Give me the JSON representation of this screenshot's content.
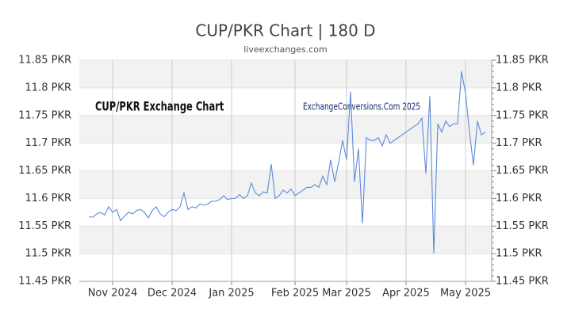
{
  "chart_data": {
    "type": "line",
    "title": "CUP/PKR Chart | 180 D",
    "subtitle": "liveexchanges.com",
    "annotations": [
      "CUP/PKR Exchange Chart",
      "ExchangeConversions.Com 2025"
    ],
    "categories": [
      null,
      null,
      null,
      null,
      null,
      null,
      "Nov 2024",
      null,
      null,
      null,
      null,
      null,
      null,
      null,
      null,
      null,
      null,
      null,
      null,
      null,
      null,
      "Dec 2024",
      null,
      null,
      null,
      null,
      null,
      null,
      null,
      null,
      null,
      null,
      null,
      null,
      null,
      null,
      "Jan 2025",
      null,
      null,
      null,
      null,
      null,
      null,
      null,
      null,
      null,
      null,
      null,
      null,
      null,
      null,
      null,
      "Feb 2025",
      null,
      null,
      null,
      null,
      null,
      null,
      null,
      null,
      null,
      null,
      null,
      null,
      "Mar 2025",
      null,
      null,
      null,
      null,
      null,
      null,
      null,
      null,
      null,
      null,
      null,
      null,
      null,
      null,
      "Apr 2025",
      null,
      null,
      null,
      null,
      null,
      null,
      null,
      null,
      null,
      null,
      null,
      null,
      null,
      null,
      "May 2025",
      null,
      null,
      null,
      null,
      null
    ],
    "series": [
      {
        "name": "CUP/PKR",
        "color": "#5b8bd9",
        "values": [
          11.567,
          11.566,
          11.572,
          11.575,
          11.57,
          11.585,
          11.575,
          11.58,
          11.56,
          11.568,
          11.575,
          11.572,
          11.578,
          11.58,
          11.575,
          11.565,
          11.578,
          11.585,
          11.572,
          11.567,
          11.575,
          11.58,
          11.578,
          11.585,
          11.61,
          11.58,
          11.585,
          11.583,
          11.59,
          11.588,
          11.59,
          11.595,
          11.595,
          11.598,
          11.605,
          11.598,
          11.6,
          11.6,
          11.607,
          11.6,
          11.605,
          11.628,
          11.61,
          11.605,
          11.612,
          11.61,
          11.662,
          11.6,
          11.605,
          11.615,
          11.61,
          11.617,
          11.605,
          11.61,
          11.615,
          11.62,
          11.62,
          11.625,
          11.62,
          11.64,
          11.625,
          11.67,
          11.63,
          11.665,
          11.705,
          11.67,
          11.793,
          11.63,
          11.69,
          11.555,
          11.71,
          11.705,
          11.705,
          11.71,
          11.695,
          11.715,
          11.7,
          11.705,
          11.71,
          11.715,
          11.72,
          11.725,
          11.73,
          11.735,
          11.745,
          11.645,
          11.785,
          11.5,
          11.735,
          11.72,
          11.74,
          11.73,
          11.735,
          11.735,
          11.83,
          11.79,
          11.72,
          11.66,
          11.74,
          11.715,
          11.72
        ]
      }
    ],
    "ylim": [
      11.45,
      11.85
    ],
    "yticks": [
      {
        "value": 11.45,
        "label": "11.45 PKR"
      },
      {
        "value": 11.5,
        "label": "11.5 PKR"
      },
      {
        "value": 11.55,
        "label": "11.55 PKR"
      },
      {
        "value": 11.6,
        "label": "11.6 PKR"
      },
      {
        "value": 11.65,
        "label": "11.65 PKR"
      },
      {
        "value": 11.7,
        "label": "11.7 PKR"
      },
      {
        "value": 11.75,
        "label": "11.75 PKR"
      },
      {
        "value": 11.8,
        "label": "11.8 PKR"
      },
      {
        "value": 11.85,
        "label": "11.85 PKR"
      }
    ],
    "grid": true
  }
}
